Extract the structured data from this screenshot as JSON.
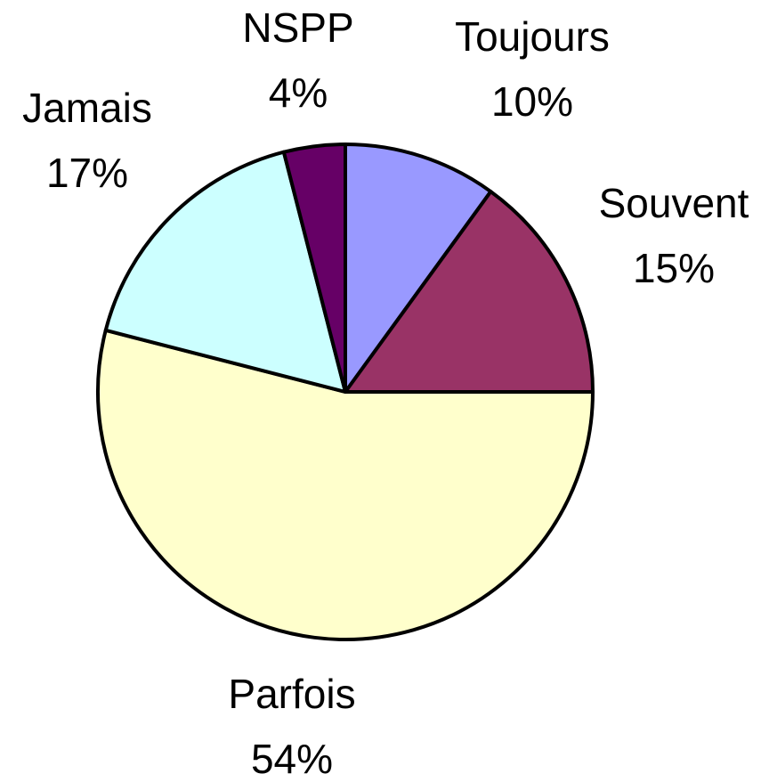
{
  "chart_data": {
    "type": "pie",
    "categories": [
      "Toujours",
      "Souvent",
      "Parfois",
      "Jamais",
      "NSPP"
    ],
    "values": [
      10,
      15,
      54,
      17,
      4
    ],
    "value_labels": [
      "10%",
      "15%",
      "54%",
      "17%",
      "4%"
    ],
    "colors": [
      "#9999ff",
      "#993366",
      "#ffffcc",
      "#ccffff",
      "#660066"
    ]
  }
}
